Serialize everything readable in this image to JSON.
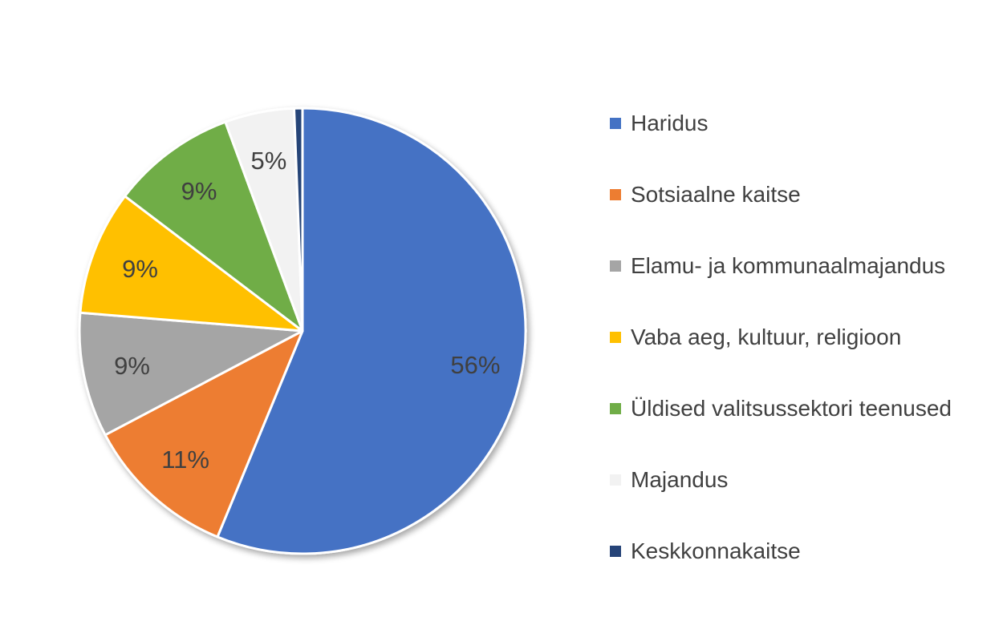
{
  "chart_data": {
    "type": "pie",
    "title": "",
    "start_angle_deg": 0,
    "direction": "clockwise",
    "legend_position": "right",
    "slices": [
      {
        "name": "Haridus",
        "value": 56,
        "label": "56%",
        "color": "#4472C4"
      },
      {
        "name": "Sotsiaalne kaitse",
        "value": 11,
        "label": "11%",
        "color": "#ED7D31"
      },
      {
        "name": "Elamu- ja kommunaalmajandus",
        "value": 9,
        "label": "9%",
        "color": "#A5A5A5"
      },
      {
        "name": "Vaba aeg, kultuur, religioon",
        "value": 9,
        "label": "9%",
        "color": "#FFC000"
      },
      {
        "name": "Üldised valitsussektori teenused",
        "value": 9,
        "label": "9%",
        "color": "#70AD47"
      },
      {
        "name": "Majandus",
        "value": 5,
        "label": "5%",
        "color": "#F2F2F2"
      },
      {
        "name": "Keskkonnakaitse",
        "value": 0.6,
        "label": "",
        "color": "#264478"
      }
    ]
  }
}
